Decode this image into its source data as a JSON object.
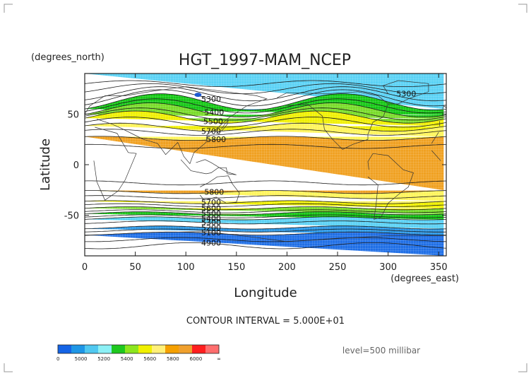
{
  "chart_data": {
    "type": "heatmap",
    "title": "HGT_1997-MAM_NCEP",
    "xlabel": "Longitude",
    "ylabel": "Latitude",
    "x_unit": "(degrees_east)",
    "y_unit": "(degrees_north)",
    "xlim": [
      0,
      357.5
    ],
    "ylim": [
      -90,
      90
    ],
    "x_ticks": [
      0,
      50,
      100,
      150,
      200,
      250,
      300,
      350
    ],
    "y_ticks": [
      50,
      0,
      -50
    ],
    "contour_interval_text": "CONTOUR INTERVAL = 5.000E+01",
    "level_text": "level=500 millibar",
    "contour_labels": [
      {
        "text": "5300",
        "lon": 125,
        "lat": 65
      },
      {
        "text": "5400",
        "lon": 128,
        "lat": 52
      },
      {
        "text": "5500",
        "lon": 127,
        "lat": 43
      },
      {
        "text": "5700",
        "lon": 125,
        "lat": 33
      },
      {
        "text": "5800",
        "lon": 130,
        "lat": 25
      },
      {
        "text": "5300",
        "lon": 318,
        "lat": 70
      },
      {
        "text": "5800",
        "lon": 128,
        "lat": -27
      },
      {
        "text": "5700",
        "lon": 125,
        "lat": -37
      },
      {
        "text": "5600",
        "lon": 125,
        "lat": -43
      },
      {
        "text": "5500",
        "lon": 125,
        "lat": -48
      },
      {
        "text": "5400",
        "lon": 125,
        "lat": -53
      },
      {
        "text": "5300",
        "lon": 125,
        "lat": -57
      },
      {
        "text": "5200",
        "lon": 125,
        "lat": -62
      },
      {
        "text": "5100",
        "lon": 125,
        "lat": -67
      },
      {
        "text": "4900",
        "lon": 125,
        "lat": -77
      }
    ],
    "colorbar": {
      "colors": [
        "#1464e6",
        "#1e96e6",
        "#50c8f0",
        "#8cf0f5",
        "#1ec81e",
        "#8ce61e",
        "#f0f000",
        "#fff078",
        "#f5a000",
        "#f0a02d",
        "#ff1e1e",
        "#ff6e6e"
      ],
      "labels": [
        "0",
        "5000",
        "5200",
        "5400",
        "5600",
        "5800",
        "6000",
        "∞"
      ]
    },
    "band_colors": {
      "lt_5000": "#1e6ee6",
      "5000_5200": "#2896e6",
      "5200_5400": "#5ad2f5",
      "5400_5500": "#14c814",
      "5500_5600": "#78dc28",
      "5600_5700": "#f0f000",
      "5700_5800": "#fff55a",
      "gt_5800": "#f0a020"
    }
  }
}
